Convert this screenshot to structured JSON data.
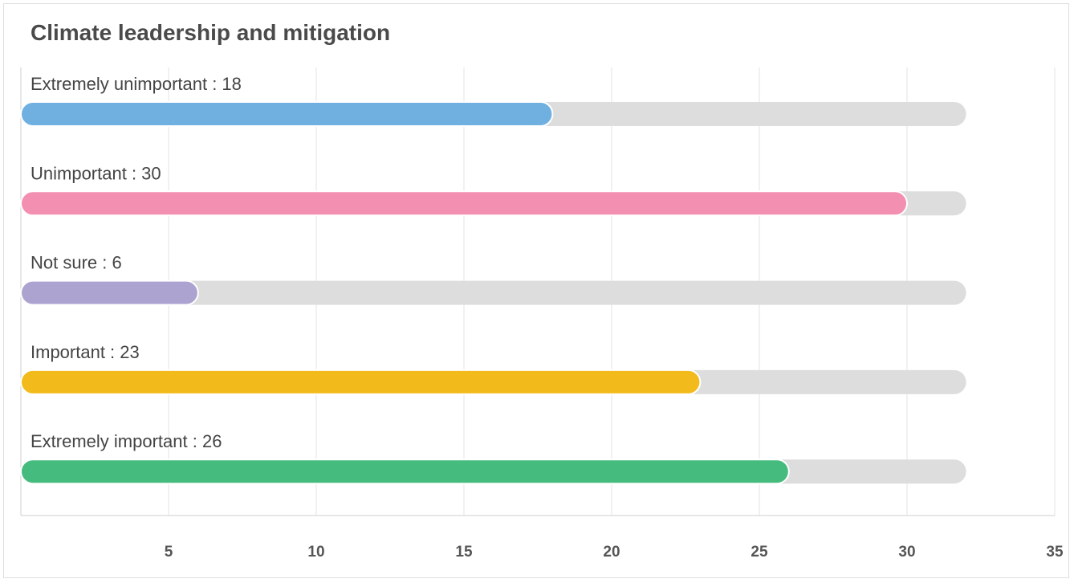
{
  "chart_data": {
    "type": "bar",
    "orientation": "horizontal",
    "title": "Climate leadership and mitigation",
    "categories": [
      "Extremely unimportant",
      "Unimportant",
      "Not sure",
      "Important",
      "Extremely important"
    ],
    "values": [
      18,
      30,
      6,
      23,
      26
    ],
    "bar_labels": [
      "Extremely unimportant : 18",
      "Unimportant : 30",
      "Not sure : 6",
      "Important : 23",
      "Extremely important : 26"
    ],
    "colors": [
      "#6fb0e0",
      "#f390b2",
      "#ada3d1",
      "#f2bb1b",
      "#46bb7e"
    ],
    "track_color": "#dddddd",
    "track_max": 32,
    "xlim": [
      0,
      35
    ],
    "xticks": [
      5,
      10,
      15,
      20,
      25,
      30,
      35
    ],
    "xtick_labels": [
      "5",
      "10",
      "15",
      "20",
      "25",
      "30",
      "35"
    ],
    "grid": true,
    "xlabel": "",
    "ylabel": ""
  }
}
